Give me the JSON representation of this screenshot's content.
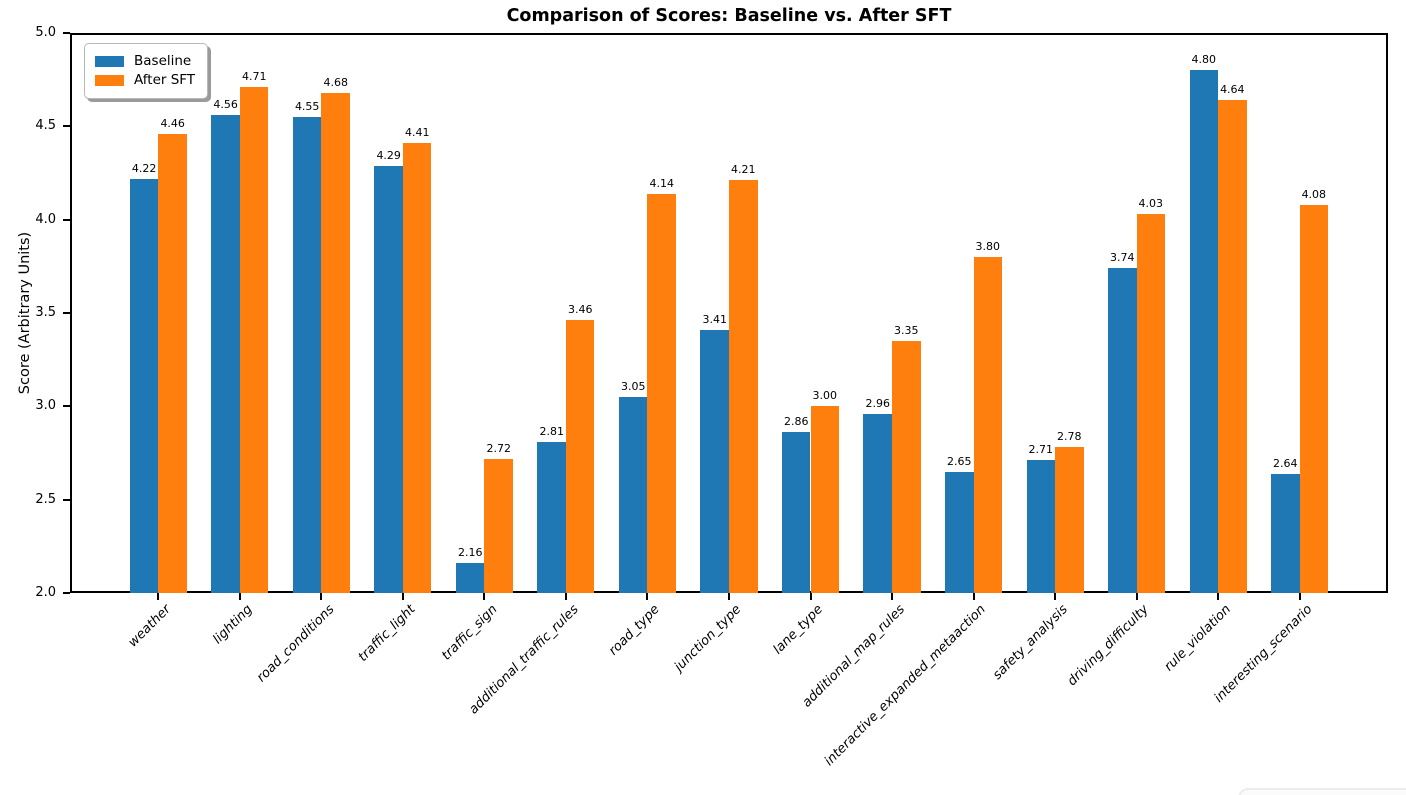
{
  "chart_data": {
    "type": "bar",
    "title": "Comparison of Scores: Baseline vs. After SFT",
    "xlabel": "",
    "ylabel": "Score (Arbitrary Units)",
    "ylim": [
      2.0,
      5.0
    ],
    "yticks": [
      2.0,
      2.5,
      3.0,
      3.5,
      4.0,
      4.5,
      5.0
    ],
    "grid": false,
    "legend_position": "upper left",
    "bar_width": 0.35,
    "value_labels": true,
    "categories": [
      "weather",
      "lighting",
      "road_conditions",
      "traffic_light",
      "traffic_sign",
      "additional_traffic_rules",
      "road_type",
      "junction_type",
      "lane_type",
      "additional_map_rules",
      "interactive_expanded_metaaction",
      "safety_analysis",
      "driving_difficulty",
      "rule_violation",
      "interesting_scenario"
    ],
    "series": [
      {
        "name": "Baseline",
        "color": "#1f77b4",
        "values": [
          4.22,
          4.56,
          4.55,
          4.29,
          2.16,
          2.81,
          3.05,
          3.41,
          2.86,
          2.96,
          2.65,
          2.71,
          3.74,
          4.8,
          2.64
        ]
      },
      {
        "name": "After SFT",
        "color": "#ff7f0e",
        "values": [
          4.46,
          4.71,
          4.68,
          4.41,
          2.72,
          3.46,
          4.14,
          4.21,
          3.0,
          3.35,
          3.8,
          2.78,
          4.03,
          4.64,
          4.08
        ]
      }
    ]
  }
}
